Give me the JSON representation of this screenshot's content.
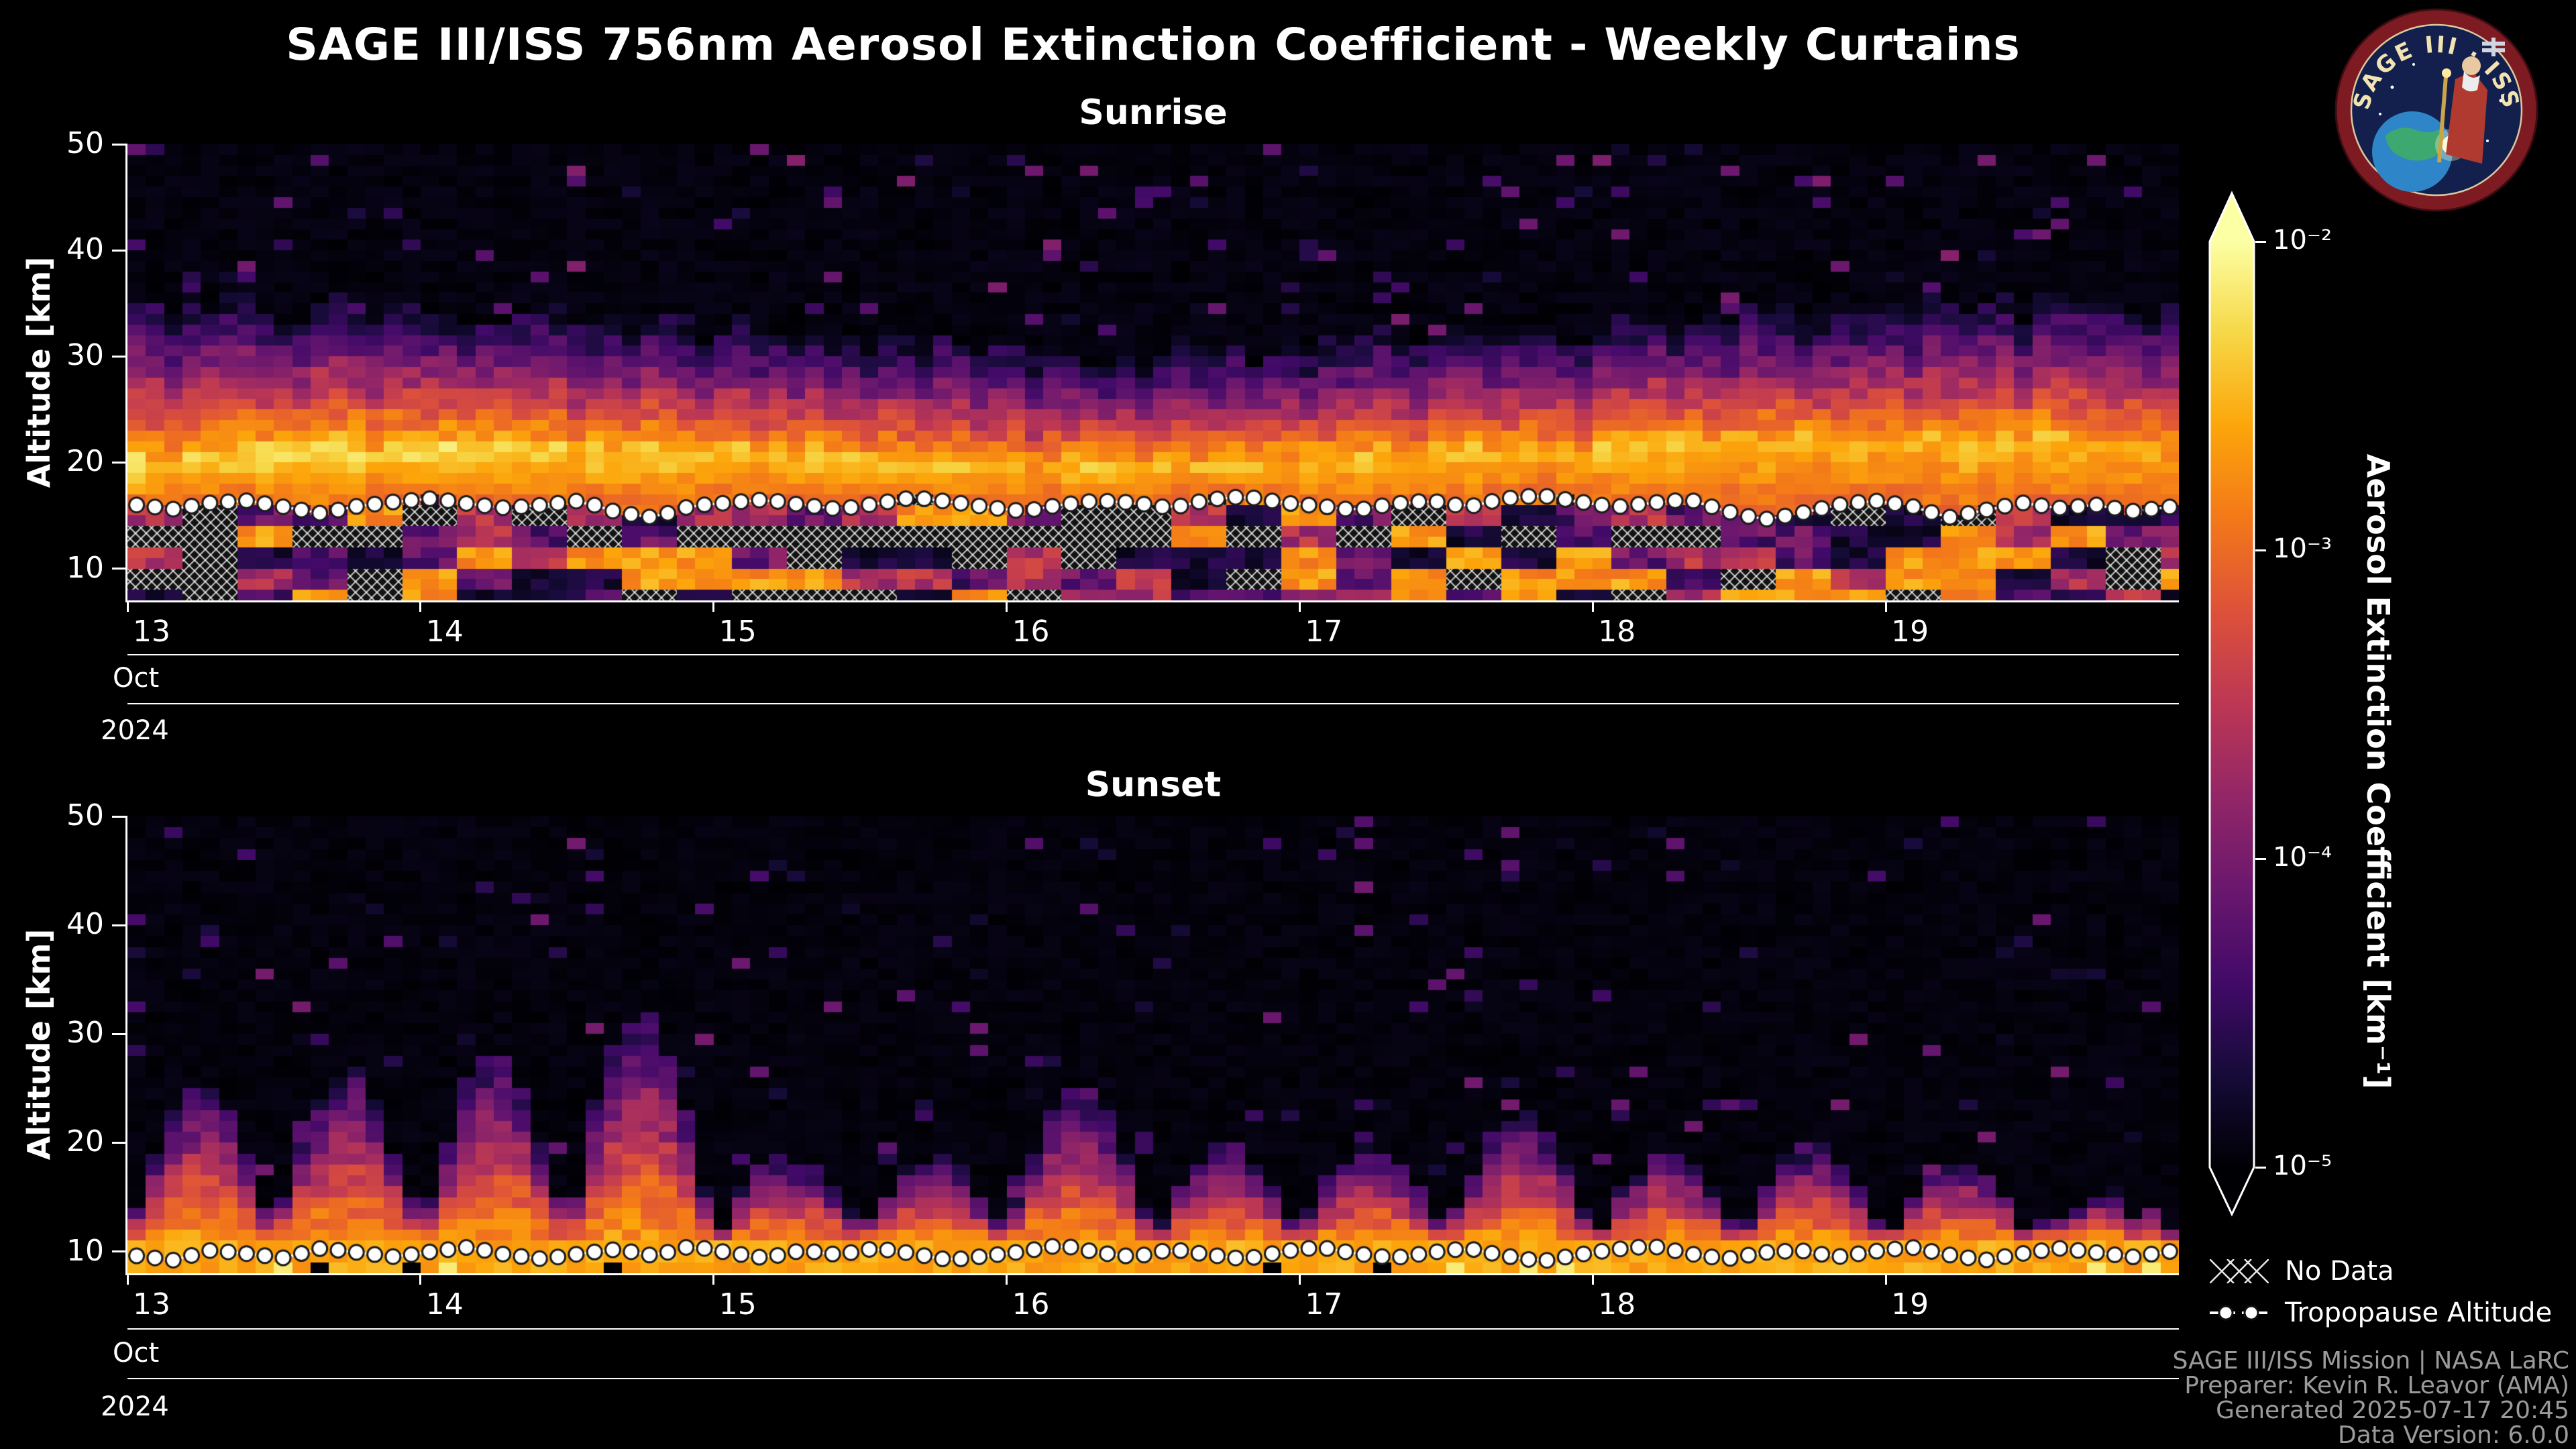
{
  "header": {
    "title": "SAGE III/ISS 756nm Aerosol Extinction Coefficient - Weekly Curtains"
  },
  "logo": {
    "title": "SAGE III · ISS"
  },
  "colorbar": {
    "label": "Aerosol Extinction Coefficient [km⁻¹]",
    "scale": "log",
    "vmin": 1e-05,
    "vmax": 0.01,
    "colormap": "inferno",
    "ticks": [
      "10⁻²",
      "10⁻³",
      "10⁻⁴",
      "10⁻⁵"
    ],
    "gradient_stops": [
      [
        0.0,
        "#000004"
      ],
      [
        0.1,
        "#160b39"
      ],
      [
        0.2,
        "#420a68"
      ],
      [
        0.3,
        "#6a176e"
      ],
      [
        0.4,
        "#932667"
      ],
      [
        0.5,
        "#bc3754"
      ],
      [
        0.6,
        "#dd513a"
      ],
      [
        0.7,
        "#f37819"
      ],
      [
        0.8,
        "#fca50a"
      ],
      [
        0.9,
        "#f6d746"
      ],
      [
        1.0,
        "#fcffa4"
      ]
    ]
  },
  "legend": {
    "no_data": "No Data",
    "tropopause": "Tropopause Altitude"
  },
  "credits": [
    "SAGE III/ISS Mission | NASA LaRC",
    "Preparer: Kevin R. Leavor (AMA)",
    "Generated 2025-07-17 20:45",
    "Data Version: 6.0.0"
  ],
  "chart_data": [
    {
      "type": "heatmap",
      "title": "Sunrise",
      "ylabel": "Altitude [km]",
      "y_ticks": [
        10,
        20,
        30,
        40,
        50
      ],
      "ylim": [
        7,
        50
      ],
      "x_ticks": [
        "13",
        "14",
        "15",
        "16",
        "17",
        "18",
        "19"
      ],
      "xlim_days": [
        13,
        20
      ],
      "x_month": "Oct",
      "x_year": "2024",
      "value_scale": "log",
      "value_range": [
        1e-05,
        0.01
      ],
      "features": {
        "aerosol_layer_center_km": 20.5,
        "aerosol_layer_peak_km-1": 0.005,
        "haze_top_km": 34,
        "no_data_hatching_below_tropopause": true,
        "seed": 20241013
      },
      "tropopause_km": [
        16.0,
        15.6,
        16.2,
        16.4,
        15.8,
        15.2,
        15.9,
        16.3,
        16.6,
        16.1,
        15.7,
        16.0,
        16.4,
        15.3,
        14.8,
        15.9,
        16.2,
        16.5,
        16.0,
        15.6,
        16.1,
        16.7,
        16.3,
        15.8,
        15.4,
        16.0,
        16.4,
        16.2,
        15.7,
        16.5,
        16.8,
        16.2,
        15.9,
        15.5,
        16.1,
        16.4,
        15.8,
        16.6,
        16.9,
        16.3,
        15.8,
        16.2,
        16.5,
        15.4,
        14.6,
        15.2,
        16.0,
        16.4,
        15.9,
        14.8,
        15.5,
        16.2,
        15.7,
        16.0,
        15.4,
        15.8
      ]
    },
    {
      "type": "heatmap",
      "title": "Sunset",
      "ylabel": "Altitude [km]",
      "y_ticks": [
        10,
        20,
        30,
        40,
        50
      ],
      "ylim": [
        8,
        50
      ],
      "x_ticks": [
        "13",
        "14",
        "15",
        "16",
        "17",
        "18",
        "19"
      ],
      "xlim_days": [
        13,
        20
      ],
      "x_month": "Oct",
      "x_year": "2024",
      "value_scale": "log",
      "value_range": [
        1e-05,
        0.01
      ],
      "features": {
        "surface_band_top_km": 16,
        "surface_band_peak_km-1": 0.0025,
        "plume_top_km": 30,
        "plumes_per_day": 2,
        "seed": 20241014
      },
      "tropopause_km": [
        9.6,
        9.2,
        10.1,
        9.8,
        9.4,
        10.3,
        9.9,
        9.5,
        10.0,
        10.4,
        9.7,
        9.3,
        9.8,
        10.2,
        9.6,
        10.5,
        9.9,
        9.4,
        10.1,
        9.7,
        10.3,
        9.8,
        9.2,
        9.6,
        10.0,
        10.6,
        9.9,
        9.5,
        10.2,
        9.7,
        9.3,
        10.0,
        10.4,
        9.8,
        9.4,
        9.9,
        10.3,
        9.6,
        9.1,
        9.7,
        10.2,
        10.5,
        9.8,
        9.3,
        9.9,
        10.1,
        9.5,
        10.0,
        10.4,
        9.7,
        9.2,
        9.8,
        10.3,
        9.9,
        9.5,
        10.0
      ]
    }
  ]
}
